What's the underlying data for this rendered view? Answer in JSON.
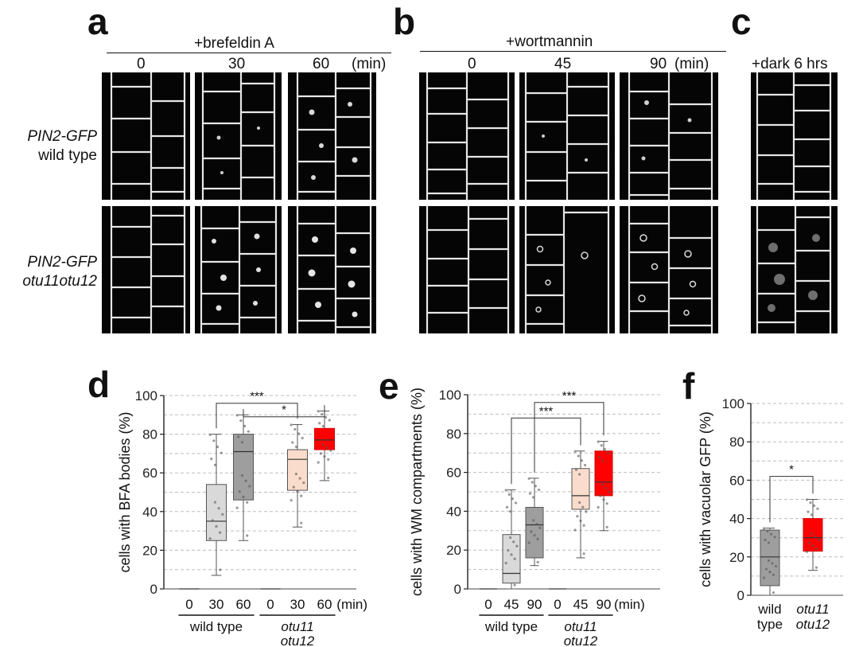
{
  "panels": {
    "a": {
      "letter": "a",
      "treatment": "+brefeldin A",
      "times": [
        "0",
        "30",
        "60"
      ],
      "unit": "(min)"
    },
    "b": {
      "letter": "b",
      "treatment": "+wortmannin",
      "times": [
        "0",
        "45",
        "90"
      ],
      "unit": "(min)"
    },
    "c": {
      "letter": "c",
      "treatment": "+dark 6 hrs"
    }
  },
  "rows": [
    {
      "line1": "PIN2-GFP",
      "line2": "wild type"
    },
    {
      "line1": "PIN2-GFP",
      "line2": "otu11otu12"
    }
  ],
  "colors": {
    "wt_0": "#ffffff",
    "wt_light": "#d9d9d9",
    "wt_dark": "#9e9e9e",
    "mut_0": "#ffffff",
    "mut_light": "#f9dccb",
    "mut_dark": "#ff0000",
    "grid": "#bdbdbd",
    "image_bg": "#050505",
    "membrane": "#e8e8e8"
  },
  "chart_data": [
    {
      "panel": "d",
      "type": "box",
      "ylabel": "cells with BFA bodies (%)",
      "ylim": [
        0,
        100
      ],
      "yticks": [
        "0",
        "20",
        "40",
        "60",
        "80",
        "100"
      ],
      "xunit": "(min)",
      "categories": [
        "0",
        "30",
        "60",
        "0",
        "30",
        "60"
      ],
      "groups": [
        {
          "label": [
            "wild type"
          ],
          "italic": false,
          "range": [
            0,
            2
          ]
        },
        {
          "label": [
            "otu11",
            "otu12"
          ],
          "italic": true,
          "range": [
            3,
            5
          ]
        }
      ],
      "boxes": [
        {
          "min": 0,
          "q1": 0,
          "median": 0,
          "q3": 0,
          "max": 0,
          "color": "wt_0"
        },
        {
          "min": 7,
          "q1": 25,
          "median": 35,
          "q3": 54,
          "max": 80,
          "color": "wt_light"
        },
        {
          "min": 25,
          "q1": 46,
          "median": 71,
          "q3": 80,
          "max": 90,
          "color": "wt_dark"
        },
        {
          "min": 0,
          "q1": 0,
          "median": 0,
          "q3": 0,
          "max": 0,
          "color": "mut_0"
        },
        {
          "min": 32,
          "q1": 51,
          "median": 67,
          "q3": 72,
          "max": 85,
          "color": "mut_light"
        },
        {
          "min": 56,
          "q1": 72,
          "median": 77,
          "q3": 83,
          "max": 92,
          "color": "mut_dark"
        }
      ],
      "significance": [
        {
          "from": 1,
          "to": 4,
          "label": "***",
          "y": 96
        },
        {
          "from": 2,
          "to": 5,
          "label": "*",
          "y": 89
        }
      ]
    },
    {
      "panel": "e",
      "type": "box",
      "ylabel": "cells with WM compartments (%)",
      "ylim": [
        0,
        100
      ],
      "yticks": [
        "0",
        "20",
        "40",
        "60",
        "80",
        "100"
      ],
      "xunit": "(min)",
      "categories": [
        "0",
        "45",
        "90",
        "0",
        "45",
        "90"
      ],
      "groups": [
        {
          "label": [
            "wild type"
          ],
          "italic": false,
          "range": [
            0,
            2
          ]
        },
        {
          "label": [
            "otu11",
            "otu12"
          ],
          "italic": true,
          "range": [
            3,
            5
          ]
        }
      ],
      "boxes": [
        {
          "min": 0,
          "q1": 0,
          "median": 0,
          "q3": 0,
          "max": 0,
          "color": "wt_0"
        },
        {
          "min": 0,
          "q1": 3,
          "median": 8,
          "q3": 28,
          "max": 51,
          "color": "wt_light"
        },
        {
          "min": 12,
          "q1": 16,
          "median": 33,
          "q3": 42,
          "max": 57,
          "color": "wt_dark"
        },
        {
          "min": 0,
          "q1": 0,
          "median": 0,
          "q3": 0,
          "max": 0,
          "color": "mut_0"
        },
        {
          "min": 16,
          "q1": 41,
          "median": 48,
          "q3": 62,
          "max": 71,
          "color": "mut_light"
        },
        {
          "min": 30,
          "q1": 48,
          "median": 55,
          "q3": 71,
          "max": 76,
          "color": "mut_dark"
        }
      ],
      "significance": [
        {
          "from": 1,
          "to": 4,
          "label": "***",
          "y": 88
        },
        {
          "from": 2,
          "to": 5,
          "label": "***",
          "y": 96
        }
      ]
    },
    {
      "panel": "f",
      "type": "box",
      "ylabel": "cells with vacuolar GFP (%)",
      "ylim": [
        0,
        100
      ],
      "yticks": [
        "0",
        "20",
        "40",
        "60",
        "80",
        "100"
      ],
      "categories": [
        [
          "wild",
          "type"
        ],
        [
          "otu11",
          "otu12"
        ]
      ],
      "category_italic": [
        false,
        true
      ],
      "boxes": [
        {
          "min": 0,
          "q1": 5,
          "median": 20,
          "q3": 34,
          "max": 35,
          "color": "wt_dark"
        },
        {
          "min": 13,
          "q1": 23,
          "median": 30,
          "q3": 40,
          "max": 50,
          "color": "mut_dark"
        }
      ],
      "significance": [
        {
          "from": 0,
          "to": 1,
          "label": "*",
          "y": 62
        }
      ]
    }
  ]
}
